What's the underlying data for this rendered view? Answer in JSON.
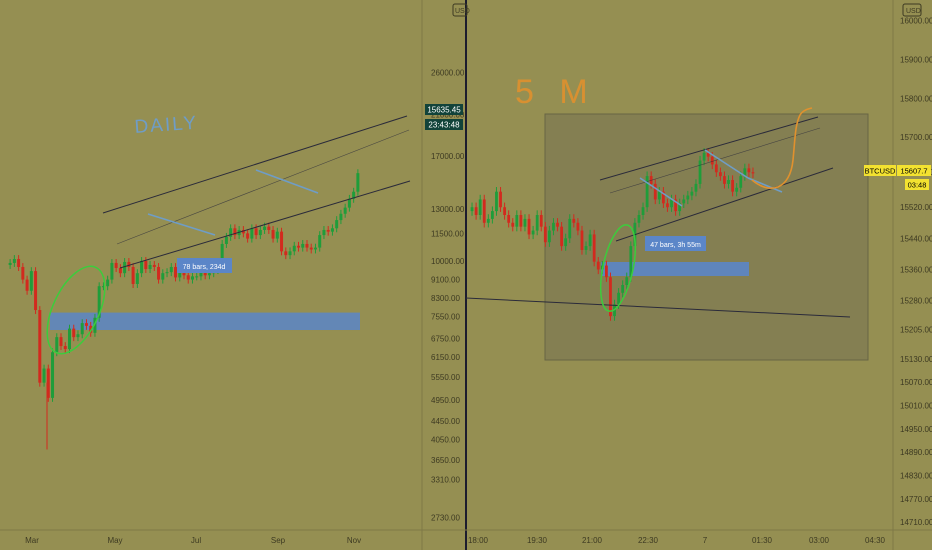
{
  "colors": {
    "background": "#958f52",
    "axis_bg": "#958f52",
    "separator": "#1c1c2e",
    "candle_up": "#1f9d3a",
    "candle_down": "#d22a1e",
    "channel_line": "#2a2a3a",
    "annot_fill": "#5b86c8",
    "box_fill": "#7f7a52",
    "box_stroke": "#5a5640",
    "ellipse": "#3ccc3c",
    "handwriting_blue": "#6f9dc6",
    "handwriting_orange": "#e0912e",
    "price_tag_green": "#12433a",
    "price_tag_yellow": "#f3e230",
    "tick_text": "#3d3a22"
  },
  "chart_data": [
    {
      "type": "candlestick",
      "panel": "left",
      "timeframe_note": "DAILY",
      "currency_badge": "USD",
      "y_scale": "log",
      "ylim": [
        2600,
        36000
      ],
      "price_ticks": [
        "2730.00",
        "3310.00",
        "3650.00",
        "4050.00",
        "4450.00",
        "4950.00",
        "5550.00",
        "6150.00",
        "6750.00",
        "7550.00",
        "8300.00",
        "9100.00",
        "10000.00",
        "11500.00",
        "13000.00",
        "17000.00",
        "21000.00",
        "26000.00"
      ],
      "x_ticks": [
        "Mar",
        "May",
        "Jul",
        "Sep",
        "Nov"
      ],
      "last_price": "15635.45",
      "countdown": "23:43:48",
      "annotation": "78 bars, 234d",
      "grid": false,
      "legend": "none",
      "support_zone": [
        7050,
        7700
      ],
      "candles_close": [
        9900,
        10100,
        9700,
        9100,
        8600,
        9500,
        7800,
        5400,
        5800,
        5000,
        6300,
        6800,
        6500,
        6400,
        7100,
        6800,
        6900,
        7300,
        7200,
        6950,
        7500,
        8800,
        8800,
        9100,
        9900,
        9650,
        9400,
        9950,
        9700,
        8900,
        9400,
        10000,
        9600,
        9800,
        9700,
        9100,
        9400,
        9450,
        9700,
        9200,
        9550,
        9300,
        9100,
        9250,
        9250,
        9450,
        9300,
        9400,
        9550,
        9900,
        10900,
        11300,
        11800,
        11400,
        11700,
        11500,
        11200,
        11800,
        11400,
        11700,
        11900,
        11700,
        11200,
        11600,
        10500,
        10300,
        10500,
        10800,
        10700,
        10900,
        10700,
        10600,
        10700,
        11400,
        11700,
        11600,
        11800,
        12300,
        12700,
        13100,
        13700,
        14200,
        15600
      ]
    },
    {
      "type": "candlestick",
      "panel": "right",
      "timeframe_note": "5 M",
      "symbol": "BTCUSD",
      "currency_badge": "USD",
      "ylim": [
        14690,
        16040
      ],
      "price_ticks": [
        "14710.00",
        "14770.00",
        "14830.00",
        "14890.00",
        "14950.00",
        "15010.00",
        "15070.00",
        "15130.00",
        "15205.00",
        "15280.00",
        "15360.00",
        "15440.00",
        "15520.00",
        "15610.00",
        "15700.00",
        "15800.00",
        "15900.00",
        "16000.00"
      ],
      "x_ticks": [
        "18:00",
        "19:30",
        "21:00",
        "22:30",
        "7",
        "01:30",
        "03:00",
        "04:30"
      ],
      "last_price": "15607.7",
      "countdown": "03:48",
      "annotation": "47 bars, 3h 55m",
      "grid": false,
      "legend": "none",
      "support_zone": [
        15345,
        15370
      ],
      "candles_close": [
        15520,
        15500,
        15540,
        15480,
        15490,
        15510,
        15560,
        15520,
        15500,
        15480,
        15470,
        15500,
        15470,
        15490,
        15450,
        15460,
        15500,
        15470,
        15430,
        15460,
        15480,
        15470,
        15420,
        15440,
        15490,
        15480,
        15460,
        15410,
        15420,
        15450,
        15380,
        15360,
        15370,
        15340,
        15240,
        15270,
        15300,
        15320,
        15340,
        15420,
        15480,
        15500,
        15520,
        15600,
        15580,
        15540,
        15560,
        15530,
        15520,
        15540,
        15510,
        15530,
        15540,
        15550,
        15560,
        15580,
        15640,
        15660,
        15650,
        15630,
        15610,
        15600,
        15580,
        15590,
        15560,
        15570,
        15600,
        15620,
        15610,
        15607
      ]
    }
  ]
}
